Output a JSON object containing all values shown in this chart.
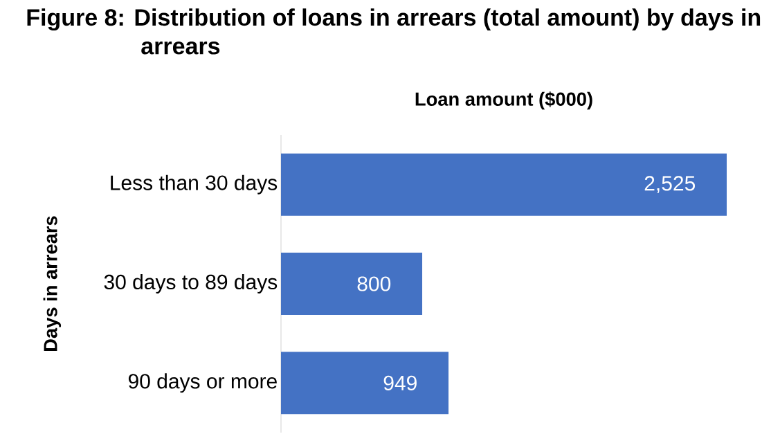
{
  "chart_data": {
    "type": "bar",
    "orientation": "horizontal",
    "title": "Figure 8:   Distribution of loans in arrears (total amount) by days in arrears",
    "xlabel": "Loan amount ($000)",
    "ylabel": "Days in arrears",
    "categories": [
      "Less than 30 days",
      "30 days to 89 days",
      "90 days or more"
    ],
    "values": [
      2525,
      800,
      949
    ],
    "value_labels": [
      "2,525",
      "800",
      "949"
    ],
    "color": "#4472c4",
    "xlim": [
      0,
      2525
    ]
  }
}
